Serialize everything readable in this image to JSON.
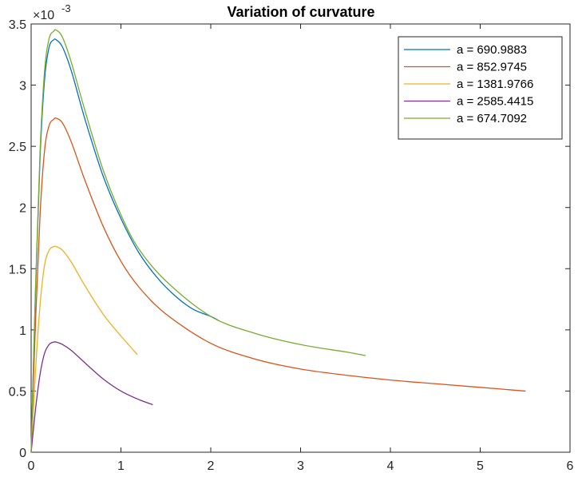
{
  "chart_data": {
    "type": "line",
    "title": "Variation of curvature",
    "xlabel": "",
    "ylabel": "",
    "xlim": [
      0,
      6
    ],
    "ylim": [
      0,
      0.0035
    ],
    "x_ticks": [
      "0",
      "1",
      "2",
      "3",
      "4",
      "5",
      "6"
    ],
    "y_ticks": [
      "0",
      "0.5",
      "1",
      "1.5",
      "2",
      "2.5",
      "3",
      "3.5"
    ],
    "y_exponent_base": "×10",
    "y_exponent": "-3",
    "grid": false,
    "legend_position": "top-right",
    "series": [
      {
        "name": "a = 690.9883",
        "color": "#0072BD",
        "x": [
          0,
          0.05,
          0.1,
          0.15,
          0.2,
          0.25,
          0.28,
          0.35,
          0.45,
          0.6,
          0.8,
          1.0,
          1.2,
          1.4,
          1.6,
          1.8,
          2.0,
          2.08
        ],
        "y": [
          0,
          0.00135,
          0.00242,
          0.00305,
          0.00331,
          0.00337,
          0.00337,
          0.00331,
          0.00311,
          0.00272,
          0.00226,
          0.00191,
          0.00163,
          0.00143,
          0.00128,
          0.00117,
          0.00111,
          0.00108
        ]
      },
      {
        "name": "a = 852.9745",
        "color": "#D95319",
        "x": [
          0,
          0.05,
          0.1,
          0.15,
          0.2,
          0.25,
          0.28,
          0.35,
          0.45,
          0.6,
          0.8,
          1.0,
          1.2,
          1.5,
          2.0,
          2.5,
          3.0,
          3.5,
          4.0,
          4.5,
          5.0,
          5.5
        ],
        "y": [
          0,
          0.00109,
          0.00195,
          0.00247,
          0.00267,
          0.00272,
          0.00273,
          0.00269,
          0.00253,
          0.00222,
          0.00185,
          0.00156,
          0.00135,
          0.00113,
          0.00089,
          0.00076,
          0.00068,
          0.00063,
          0.00059,
          0.00056,
          0.00053,
          0.0005
        ]
      },
      {
        "name": "a = 1381.9766",
        "color": "#EDB120",
        "x": [
          0,
          0.05,
          0.1,
          0.15,
          0.2,
          0.25,
          0.28,
          0.35,
          0.45,
          0.6,
          0.8,
          1.0,
          1.18
        ],
        "y": [
          0,
          0.00068,
          0.00121,
          0.00153,
          0.00165,
          0.00168,
          0.00168,
          0.00165,
          0.00155,
          0.00136,
          0.00113,
          0.00095,
          0.0008
        ]
      },
      {
        "name": "a = 2585.4415",
        "color": "#7E2F8E",
        "x": [
          0,
          0.05,
          0.1,
          0.15,
          0.2,
          0.25,
          0.28,
          0.35,
          0.45,
          0.6,
          0.8,
          1.0,
          1.2,
          1.35
        ],
        "y": [
          0,
          0.00036,
          0.00064,
          0.00081,
          0.00088,
          0.0009,
          0.0009,
          0.00088,
          0.00083,
          0.00073,
          0.0006,
          0.0005,
          0.00043,
          0.00039
        ]
      },
      {
        "name": "a = 674.7092",
        "color": "#77AC30",
        "x": [
          0,
          0.05,
          0.1,
          0.15,
          0.2,
          0.25,
          0.28,
          0.35,
          0.45,
          0.6,
          0.8,
          1.0,
          1.2,
          1.5,
          2.0,
          2.5,
          3.0,
          3.5,
          3.72
        ],
        "y": [
          0,
          0.00138,
          0.00247,
          0.00312,
          0.00338,
          0.00344,
          0.00345,
          0.00339,
          0.00318,
          0.00279,
          0.00231,
          0.00194,
          0.00166,
          0.0014,
          0.00111,
          0.00097,
          0.00088,
          0.00082,
          0.00079
        ]
      }
    ]
  }
}
